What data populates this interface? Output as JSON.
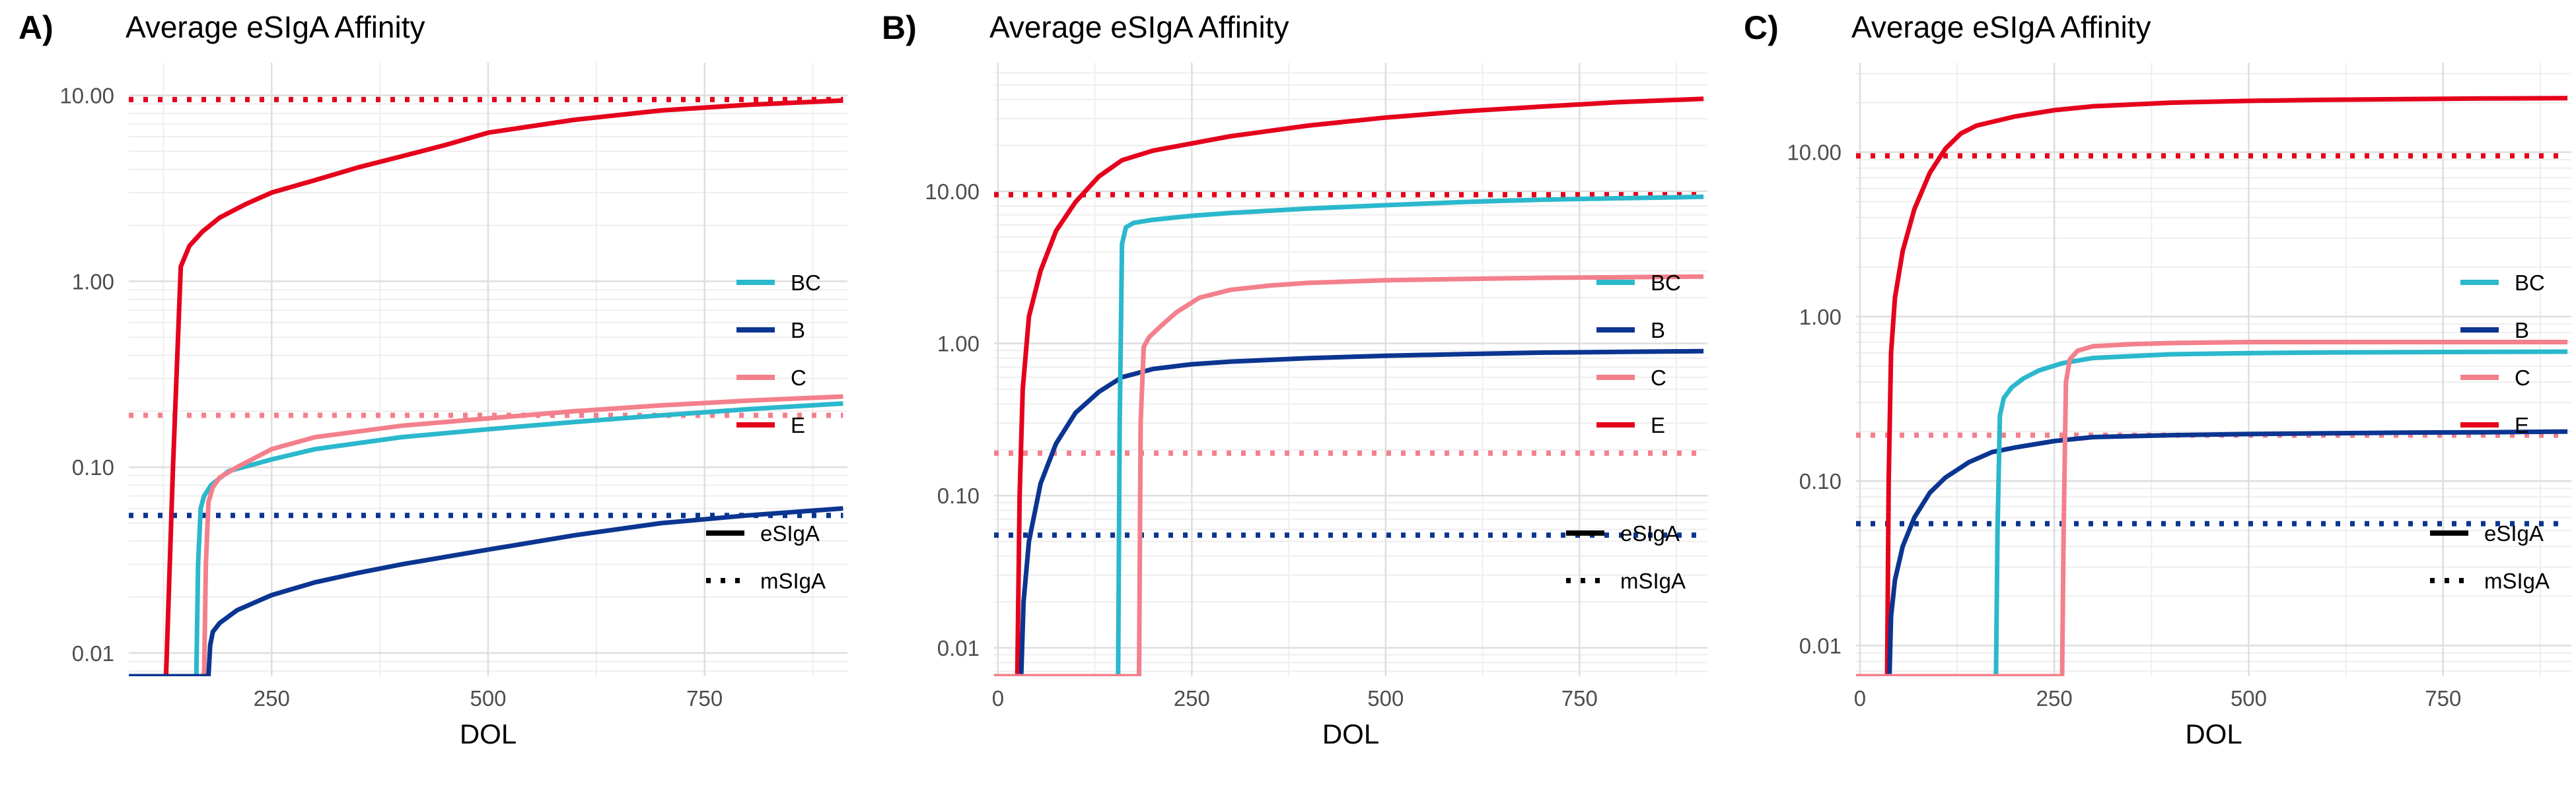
{
  "colors": {
    "BC": "#2bb8cc",
    "B": "#0b3591",
    "C": "#f3808c",
    "E": "#e5001c",
    "grid_major": "#dedede",
    "grid_minor": "#eeeeee",
    "text": "#000000",
    "axis_text": "#4d4d4d"
  },
  "chart_data": [
    {
      "panel": "A)",
      "type": "line",
      "title": "Average eSIgA Affinity",
      "xlabel": "DOL",
      "ylabel": "",
      "xlim": [
        85,
        915
      ],
      "ylim": [
        0.0075,
        15
      ],
      "yscale": "log",
      "xticks": [
        250,
        500,
        750
      ],
      "xtick_labels": [
        "250",
        "500",
        "750"
      ],
      "yticks": [
        0.01,
        0.1,
        1,
        10
      ],
      "ytick_labels": [
        "0.01",
        "0.10",
        "1.00",
        "10.00"
      ],
      "grid": true,
      "legend": {
        "placement": "right",
        "color_entries": [
          "BC",
          "B",
          "C",
          "E"
        ],
        "linetype_entries": [
          "eSIgA",
          "mSIgA"
        ]
      },
      "series": [
        {
          "name": "E",
          "style": "solid",
          "x": [
            85,
            128,
            136,
            145,
            155,
            170,
            190,
            220,
            250,
            300,
            350,
            400,
            450,
            500,
            600,
            700,
            800,
            910
          ],
          "y": [
            0.0075,
            0.0075,
            0.1,
            1.2,
            1.55,
            1.85,
            2.2,
            2.6,
            3.0,
            3.5,
            4.1,
            4.7,
            5.4,
            6.3,
            7.4,
            8.3,
            8.9,
            9.4
          ]
        },
        {
          "name": "BC",
          "style": "solid",
          "x": [
            85,
            163,
            165,
            168,
            172,
            180,
            200,
            250,
            300,
            400,
            500,
            600,
            700,
            800,
            910
          ],
          "y": [
            0.0075,
            0.0075,
            0.03,
            0.06,
            0.07,
            0.08,
            0.095,
            0.11,
            0.125,
            0.145,
            0.16,
            0.175,
            0.19,
            0.205,
            0.22
          ]
        },
        {
          "name": "C",
          "style": "solid",
          "x": [
            85,
            172,
            174,
            177,
            182,
            190,
            210,
            250,
            300,
            400,
            500,
            600,
            700,
            800,
            910
          ],
          "y": [
            0.0075,
            0.0075,
            0.03,
            0.065,
            0.078,
            0.088,
            0.1,
            0.125,
            0.145,
            0.167,
            0.183,
            0.2,
            0.215,
            0.228,
            0.24
          ]
        },
        {
          "name": "B",
          "style": "solid",
          "x": [
            85,
            177,
            179,
            182,
            190,
            210,
            250,
            300,
            350,
            400,
            500,
            600,
            700,
            800,
            910
          ],
          "y": [
            0.0075,
            0.0075,
            0.011,
            0.013,
            0.0145,
            0.017,
            0.0205,
            0.024,
            0.027,
            0.03,
            0.036,
            0.043,
            0.05,
            0.055,
            0.06
          ]
        },
        {
          "name": "E",
          "style": "dotted",
          "x": [
            85,
            910
          ],
          "y": [
            9.5,
            9.5
          ]
        },
        {
          "name": "C",
          "style": "dotted",
          "x": [
            85,
            910
          ],
          "y": [
            0.19,
            0.19
          ]
        },
        {
          "name": "B",
          "style": "dotted",
          "x": [
            85,
            910
          ],
          "y": [
            0.055,
            0.055
          ]
        }
      ]
    },
    {
      "panel": "B)",
      "type": "line",
      "title": "Average eSIgA Affinity",
      "xlabel": "DOL",
      "ylabel": "",
      "xlim": [
        -5,
        915
      ],
      "ylim": [
        0.0065,
        70
      ],
      "yscale": "log",
      "xticks": [
        0,
        250,
        500,
        750
      ],
      "xtick_labels": [
        "0",
        "250",
        "500",
        "750"
      ],
      "yticks": [
        0.01,
        0.1,
        1,
        10
      ],
      "ytick_labels": [
        "0.01",
        "0.10",
        "1.00",
        "10.00"
      ],
      "grid": true,
      "legend": {
        "placement": "right",
        "color_entries": [
          "BC",
          "B",
          "C",
          "E"
        ],
        "linetype_entries": [
          "eSIgA",
          "mSIgA"
        ]
      },
      "series": [
        {
          "name": "E",
          "style": "solid",
          "x": [
            -5,
            25,
            28,
            32,
            40,
            55,
            75,
            100,
            130,
            160,
            200,
            300,
            400,
            500,
            600,
            700,
            800,
            910
          ],
          "y": [
            0.0065,
            0.0065,
            0.1,
            0.5,
            1.5,
            3.0,
            5.5,
            8.5,
            12.5,
            16,
            18.5,
            23,
            27,
            30.5,
            33.5,
            36,
            38.5,
            40.5
          ]
        },
        {
          "name": "B",
          "style": "solid",
          "x": [
            -5,
            30,
            33,
            40,
            55,
            75,
            100,
            130,
            160,
            200,
            250,
            300,
            400,
            500,
            600,
            700,
            800,
            910
          ],
          "y": [
            0.0065,
            0.0065,
            0.02,
            0.05,
            0.12,
            0.22,
            0.35,
            0.48,
            0.6,
            0.68,
            0.73,
            0.76,
            0.8,
            0.83,
            0.85,
            0.87,
            0.88,
            0.89
          ]
        },
        {
          "name": "BC",
          "style": "solid",
          "x": [
            -5,
            155,
            157,
            160,
            165,
            175,
            200,
            250,
            300,
            400,
            500,
            600,
            700,
            800,
            910
          ],
          "y": [
            0.0065,
            0.0065,
            0.3,
            4.5,
            5.8,
            6.2,
            6.5,
            6.9,
            7.2,
            7.7,
            8.1,
            8.5,
            8.8,
            9.0,
            9.2
          ]
        },
        {
          "name": "C",
          "style": "solid",
          "x": [
            -5,
            182,
            184,
            188,
            195,
            210,
            230,
            260,
            300,
            350,
            400,
            500,
            600,
            700,
            800,
            910
          ],
          "y": [
            0.0065,
            0.0065,
            0.3,
            0.95,
            1.1,
            1.3,
            1.6,
            2.0,
            2.25,
            2.4,
            2.5,
            2.6,
            2.65,
            2.7,
            2.72,
            2.75
          ]
        },
        {
          "name": "E",
          "style": "dotted",
          "x": [
            -5,
            910
          ],
          "y": [
            9.5,
            9.5
          ]
        },
        {
          "name": "C",
          "style": "dotted",
          "x": [
            -5,
            910
          ],
          "y": [
            0.19,
            0.19
          ]
        },
        {
          "name": "B",
          "style": "dotted",
          "x": [
            -5,
            910
          ],
          "y": [
            0.055,
            0.055
          ]
        }
      ]
    },
    {
      "panel": "C)",
      "type": "line",
      "title": "Average eSIgA Affinity",
      "xlabel": "DOL",
      "ylabel": "",
      "xlim": [
        -5,
        915
      ],
      "ylim": [
        0.0065,
        35
      ],
      "yscale": "log",
      "xticks": [
        0,
        250,
        500,
        750
      ],
      "xtick_labels": [
        "0",
        "250",
        "500",
        "750"
      ],
      "yticks": [
        0.01,
        0.1,
        1,
        10
      ],
      "ytick_labels": [
        "0.01",
        "0.10",
        "1.00",
        "10.00"
      ],
      "grid": true,
      "legend": {
        "placement": "right",
        "color_entries": [
          "BC",
          "B",
          "C",
          "E"
        ],
        "linetype_entries": [
          "eSIgA",
          "mSIgA"
        ]
      },
      "series": [
        {
          "name": "E",
          "style": "solid",
          "x": [
            -5,
            35,
            37,
            40,
            45,
            55,
            70,
            90,
            110,
            130,
            150,
            200,
            250,
            300,
            400,
            500,
            600,
            700,
            800,
            910
          ],
          "y": [
            0.0065,
            0.0065,
            0.1,
            0.6,
            1.3,
            2.5,
            4.5,
            7.5,
            10.5,
            13,
            14.5,
            16.5,
            18,
            19,
            20,
            20.5,
            20.8,
            21,
            21.2,
            21.3
          ]
        },
        {
          "name": "B",
          "style": "solid",
          "x": [
            -5,
            38,
            40,
            45,
            55,
            70,
            90,
            110,
            140,
            170,
            200,
            250,
            300,
            400,
            500,
            600,
            700,
            800,
            910
          ],
          "y": [
            0.0065,
            0.0065,
            0.015,
            0.025,
            0.04,
            0.06,
            0.085,
            0.105,
            0.13,
            0.15,
            0.16,
            0.175,
            0.185,
            0.19,
            0.193,
            0.195,
            0.197,
            0.198,
            0.2
          ]
        },
        {
          "name": "BC",
          "style": "solid",
          "x": [
            -5,
            175,
            177,
            180,
            185,
            195,
            210,
            230,
            260,
            300,
            400,
            500,
            600,
            700,
            800,
            910
          ],
          "y": [
            0.0065,
            0.0065,
            0.05,
            0.25,
            0.32,
            0.37,
            0.42,
            0.47,
            0.52,
            0.56,
            0.59,
            0.6,
            0.605,
            0.608,
            0.61,
            0.612
          ]
        },
        {
          "name": "C",
          "style": "solid",
          "x": [
            -5,
            260,
            262,
            265,
            270,
            280,
            300,
            350,
            400,
            500,
            600,
            700,
            800,
            910
          ],
          "y": [
            0.0065,
            0.0065,
            0.05,
            0.4,
            0.55,
            0.62,
            0.66,
            0.68,
            0.69,
            0.7,
            0.7,
            0.7,
            0.7,
            0.7
          ]
        },
        {
          "name": "E",
          "style": "dotted",
          "x": [
            -5,
            910
          ],
          "y": [
            9.5,
            9.5
          ]
        },
        {
          "name": "C",
          "style": "dotted",
          "x": [
            -5,
            910
          ],
          "y": [
            0.19,
            0.19
          ]
        },
        {
          "name": "B",
          "style": "dotted",
          "x": [
            -5,
            910
          ],
          "y": [
            0.055,
            0.055
          ]
        }
      ]
    }
  ]
}
